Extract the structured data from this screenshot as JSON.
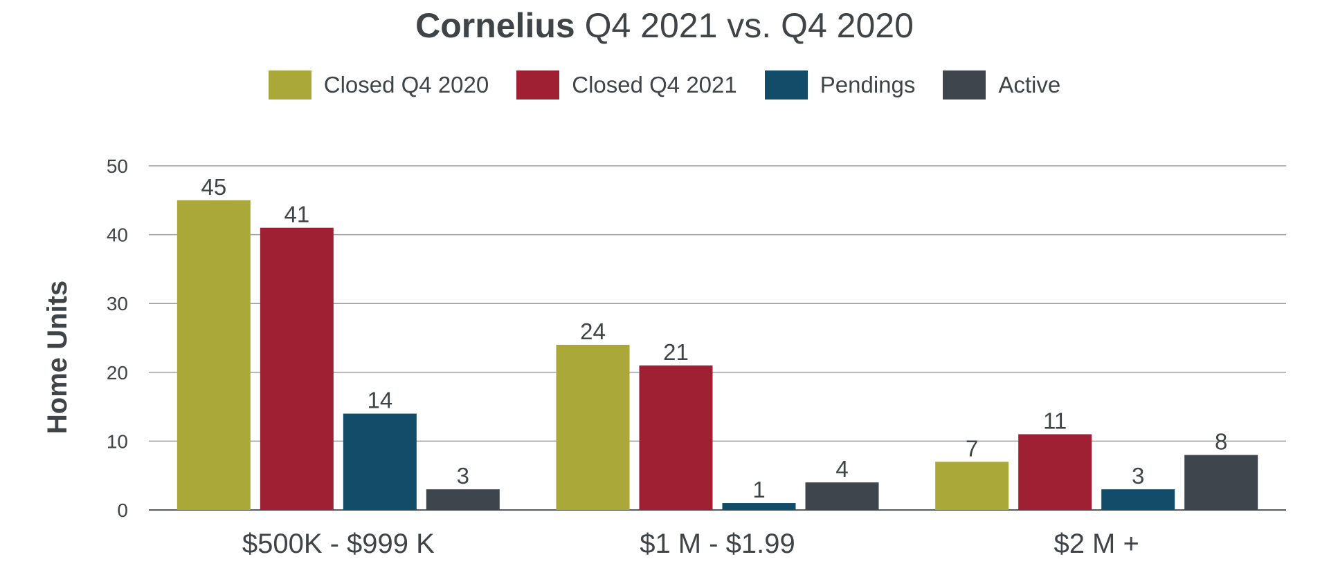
{
  "chart_data": {
    "type": "bar",
    "title_strong": "Cornelius",
    "title_rest": " Q4 2021 vs. Q4 2020",
    "ylabel": "Home Units",
    "ylim": [
      0,
      50
    ],
    "yticks": [
      0,
      10,
      20,
      30,
      40,
      50
    ],
    "grid": true,
    "legend_position": "top-center",
    "categories": [
      "$500K - $999 K",
      "$1 M - $1.99",
      "$2 M +"
    ],
    "series": [
      {
        "name": "Closed Q4 2020",
        "color": "#aba83a",
        "values": [
          45,
          24,
          7
        ]
      },
      {
        "name": "Closed Q4 2021",
        "color": "#9e2032",
        "values": [
          41,
          21,
          11
        ]
      },
      {
        "name": "Pendings",
        "color": "#134c69",
        "values": [
          14,
          1,
          3
        ]
      },
      {
        "name": "Active",
        "color": "#3f454c",
        "values": [
          3,
          4,
          8
        ]
      }
    ]
  }
}
